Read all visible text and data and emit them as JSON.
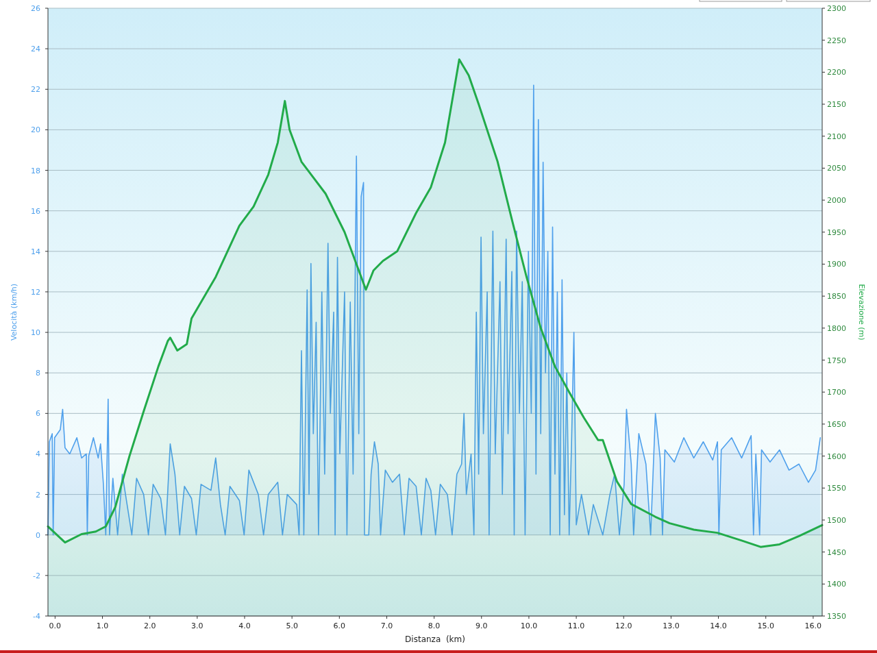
{
  "chart_data": {
    "type": "area",
    "xlabel": "Distanza  (km)",
    "ylabel": "Velocità (km/h)",
    "y2label": "Elevazione (m)",
    "xlim": [
      -0.15,
      16.19
    ],
    "xticks": [
      {
        "value": 0,
        "label": "0.0"
      },
      {
        "value": 1,
        "label": "1.0"
      },
      {
        "value": 2,
        "label": "2.0"
      },
      {
        "value": 3,
        "label": "3.0"
      },
      {
        "value": 4,
        "label": "4.0"
      },
      {
        "value": 5,
        "label": "5.0"
      },
      {
        "value": 6,
        "label": "6.0"
      },
      {
        "value": 7,
        "label": "7.0"
      },
      {
        "value": 8,
        "label": "8.0"
      },
      {
        "value": 9,
        "label": "9.0"
      },
      {
        "value": 10,
        "label": "10.0"
      },
      {
        "value": 11,
        "label": "11.0"
      },
      {
        "value": 12,
        "label": "12.0"
      },
      {
        "value": 13,
        "label": "13.0"
      },
      {
        "value": 14,
        "label": "14.0"
      },
      {
        "value": 15,
        "label": "15.0"
      },
      {
        "value": 16,
        "label": "16.0"
      }
    ],
    "ylim": [
      -4,
      26
    ],
    "yticks": [
      -4,
      -2,
      0,
      2,
      4,
      6,
      8,
      10,
      12,
      14,
      16,
      18,
      20,
      22,
      24,
      26
    ],
    "y2lim": [
      1350,
      2300
    ],
    "y2ticks": [
      1350,
      1400,
      1450,
      1500,
      1550,
      1600,
      1650,
      1700,
      1750,
      1800,
      1850,
      1900,
      1950,
      2000,
      2050,
      2100,
      2150,
      2200,
      2250,
      2300
    ],
    "grid": "y",
    "series": [
      {
        "axis": "y2",
        "color": "#22ab4a",
        "x": [
          -0.15,
          0.21,
          0.56,
          0.86,
          1.07,
          1.27,
          1.57,
          1.87,
          2.18,
          2.38,
          2.43,
          2.58,
          2.78,
          2.88,
          3.39,
          3.89,
          4.19,
          4.5,
          4.7,
          4.85,
          4.95,
          5.2,
          5.71,
          6.11,
          6.56,
          6.72,
          6.92,
          7.22,
          7.62,
          7.93,
          8.23,
          8.53,
          8.73,
          8.94,
          9.34,
          9.64,
          9.95,
          10.25,
          10.55,
          10.85,
          11.16,
          11.46,
          11.56,
          11.86,
          12.16,
          12.67,
          12.97,
          13.48,
          13.98,
          14.49,
          14.89,
          15.29,
          15.7,
          16.19
        ],
        "values": [
          1490,
          1465,
          1478,
          1482,
          1490,
          1520,
          1600,
          1670,
          1740,
          1780,
          1785,
          1765,
          1775,
          1815,
          1880,
          1960,
          1990,
          2040,
          2090,
          2155,
          2110,
          2060,
          2010,
          1950,
          1860,
          1890,
          1905,
          1920,
          1980,
          2020,
          2090,
          2220,
          2195,
          2150,
          2060,
          1970,
          1880,
          1800,
          1740,
          1700,
          1660,
          1625,
          1625,
          1560,
          1525,
          1505,
          1495,
          1485,
          1480,
          1468,
          1458,
          1462,
          1475,
          1492
        ]
      },
      {
        "color": "#4fa0ec",
        "x": [
          -0.15,
          -0.12,
          -0.06,
          -0.04,
          -0.01,
          0.11,
          0.16,
          0.21,
          0.31,
          0.46,
          0.56,
          0.66,
          0.68,
          0.71,
          0.81,
          0.91,
          0.96,
          1.02,
          1.07,
          1.12,
          1.15,
          1.22,
          1.32,
          1.42,
          1.52,
          1.62,
          1.72,
          1.87,
          1.97,
          2.07,
          2.23,
          2.33,
          2.43,
          2.53,
          2.63,
          2.73,
          2.88,
          2.98,
          3.08,
          3.29,
          3.39,
          3.49,
          3.59,
          3.69,
          3.89,
          3.99,
          4.09,
          4.29,
          4.4,
          4.5,
          4.7,
          4.8,
          4.9,
          5.1,
          5.15,
          5.2,
          5.25,
          5.32,
          5.36,
          5.4,
          5.45,
          5.51,
          5.56,
          5.63,
          5.69,
          5.76,
          5.81,
          5.88,
          5.91,
          5.96,
          6.01,
          6.11,
          6.16,
          6.23,
          6.29,
          6.36,
          6.41,
          6.46,
          6.51,
          6.53,
          6.62,
          6.67,
          6.74,
          6.82,
          6.87,
          6.97,
          7.12,
          7.27,
          7.37,
          7.47,
          7.62,
          7.73,
          7.83,
          7.93,
          8.03,
          8.13,
          8.28,
          8.38,
          8.48,
          8.58,
          8.63,
          8.68,
          8.78,
          8.84,
          8.89,
          8.94,
          8.99,
          9.04,
          9.12,
          9.16,
          9.24,
          9.29,
          9.39,
          9.44,
          9.52,
          9.56,
          9.64,
          9.69,
          9.74,
          9.8,
          9.86,
          9.92,
          9.99,
          10.05,
          10.1,
          10.15,
          10.2,
          10.25,
          10.3,
          10.35,
          10.4,
          10.45,
          10.5,
          10.55,
          10.6,
          10.65,
          10.7,
          10.75,
          10.8,
          10.85,
          10.9,
          10.95,
          11.0,
          11.11,
          11.26,
          11.36,
          11.56,
          11.71,
          11.81,
          11.91,
          12.01,
          12.06,
          12.16,
          12.21,
          12.32,
          12.47,
          12.57,
          12.67,
          12.77,
          12.82,
          12.87,
          13.07,
          13.27,
          13.48,
          13.68,
          13.88,
          13.98,
          14.01,
          14.06,
          14.28,
          14.49,
          14.69,
          14.74,
          14.79,
          14.87,
          14.91,
          15.09,
          15.29,
          15.49,
          15.7,
          15.9,
          16.05,
          16.15
        ],
        "values": [
          0,
          4.6,
          5.0,
          0,
          4.8,
          5.2,
          6.2,
          4.3,
          4.0,
          4.8,
          3.8,
          4.0,
          0,
          3.9,
          4.8,
          3.8,
          4.5,
          2.5,
          0,
          6.7,
          0,
          2.8,
          0,
          3.0,
          1.5,
          0,
          2.8,
          2.0,
          0,
          2.5,
          1.8,
          0,
          4.5,
          3.0,
          0,
          2.4,
          1.8,
          0,
          2.5,
          2.2,
          3.8,
          1.5,
          0,
          2.4,
          1.7,
          0,
          3.2,
          2.0,
          0,
          2.0,
          2.6,
          0,
          2.0,
          1.5,
          0,
          9.1,
          0,
          12.1,
          2.0,
          13.4,
          5.0,
          10.5,
          0,
          12.0,
          3.0,
          14.4,
          6.0,
          11.0,
          0,
          13.7,
          4.0,
          12.0,
          0,
          11.5,
          3.0,
          18.7,
          5.0,
          16.7,
          17.4,
          0,
          0,
          3.0,
          4.6,
          3.5,
          0,
          3.2,
          2.6,
          3.0,
          0,
          2.8,
          2.4,
          0,
          2.8,
          2.2,
          0,
          2.5,
          2.0,
          0,
          3.0,
          3.5,
          6.0,
          2.0,
          4.0,
          0,
          11.0,
          3.0,
          14.7,
          5.0,
          12.0,
          0,
          15.0,
          4.0,
          12.5,
          2.0,
          14.6,
          5.0,
          13.0,
          0,
          15.0,
          6.0,
          12.5,
          0,
          14.0,
          6.0,
          22.2,
          3.0,
          20.5,
          5.0,
          18.4,
          8.0,
          14.0,
          0,
          15.2,
          3.0,
          12.0,
          0,
          12.6,
          1.0,
          8.0,
          0,
          4.5,
          10.0,
          0.5,
          2.0,
          0,
          1.5,
          0,
          2.0,
          3.0,
          0,
          2.5,
          6.2,
          3.5,
          0,
          5.0,
          3.5,
          0,
          6.0,
          3.8,
          0,
          4.2,
          3.6,
          4.8,
          3.8,
          4.6,
          3.7,
          4.6,
          0,
          4.2,
          4.8,
          3.8,
          4.9,
          0,
          4.0,
          0,
          4.2,
          3.6,
          4.2,
          3.2,
          3.5,
          2.6,
          3.2,
          4.8
        ]
      }
    ]
  }
}
